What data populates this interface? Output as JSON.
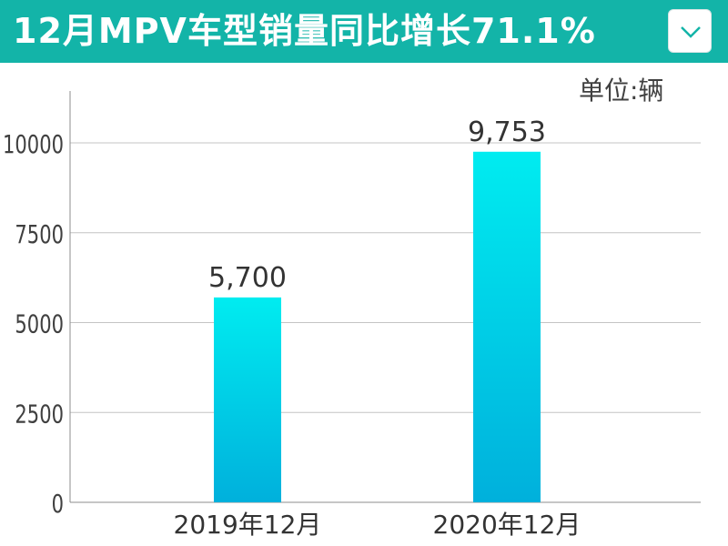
{
  "header": {
    "title": "12月MPV车型销量同比增长71.1%",
    "toggle_icon": "chevron-down-icon",
    "background": "#13b4a8"
  },
  "unit_label": "单位:辆",
  "chart_data": {
    "type": "bar",
    "title": "12月MPV车型销量同比增长71.1%",
    "categories": [
      "2019年12月",
      "2020年12月"
    ],
    "values": [
      5700,
      9753
    ],
    "data_labels": [
      "5,700",
      "9,753"
    ],
    "yticks": [
      "0",
      "2500",
      "5000",
      "7500",
      "10000"
    ],
    "ylim": [
      0,
      11000
    ],
    "grid": true,
    "bar_gradient": [
      "#00ecf0",
      "#00b0dc"
    ]
  }
}
